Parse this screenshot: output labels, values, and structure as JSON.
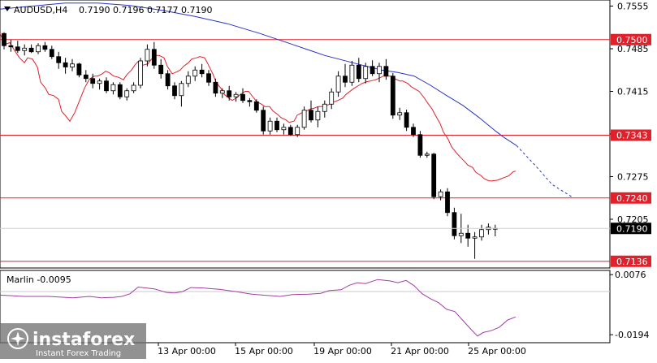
{
  "header": {
    "menu_icon": "triangle-down-icon",
    "symbol": "AUDUSD,H4",
    "ohlc": "0.7190 0.7196 0.7177 0.7190"
  },
  "indicator": {
    "label": "Marlin -0.0095"
  },
  "watermark": {
    "brand": "instaforex",
    "tagline": "Instant Forex Trading"
  },
  "colors": {
    "bull_candle": "#ffffff",
    "bear_candle": "#000000",
    "ma_fast": "#e0202a",
    "ma_slow": "#2832c8",
    "level_line": "#e0202a",
    "oscillator": "#a040a0",
    "price_badge": "#000000",
    "level_badge": "#e0202a"
  },
  "chart_data": {
    "type": "candlestick",
    "title": "AUDUSD,H4",
    "ylim": [
      0.7125,
      0.7565
    ],
    "y_ticks": [
      "0.7555",
      "0.7485",
      "0.7415",
      "0.7345",
      "0.7275",
      "0.7205",
      "0.7136"
    ],
    "x_ticks": [
      "13 Apr 00:00",
      "15 Apr 00:00",
      "19 Apr 00:00",
      "21 Apr 00:00",
      "25 Apr 00:00"
    ],
    "current_price": "0.7190",
    "levels": [
      {
        "label": "0.7500",
        "value": 0.75
      },
      {
        "label": "0.7343",
        "value": 0.7343
      },
      {
        "label": "0.7240",
        "value": 0.724
      },
      {
        "label": "0.7136",
        "value": 0.7136
      }
    ],
    "candles": [
      [
        0.751,
        0.7512,
        0.7484,
        0.749
      ],
      [
        0.749,
        0.75,
        0.748,
        0.7488
      ],
      [
        0.7488,
        0.7498,
        0.7478,
        0.7482
      ],
      [
        0.7482,
        0.7492,
        0.7474,
        0.7486
      ],
      [
        0.7486,
        0.7492,
        0.7478,
        0.748
      ],
      [
        0.748,
        0.7494,
        0.7476,
        0.749
      ],
      [
        0.749,
        0.7496,
        0.748,
        0.7484
      ],
      [
        0.7484,
        0.749,
        0.7468,
        0.7472
      ],
      [
        0.7472,
        0.748,
        0.7452,
        0.7462
      ],
      [
        0.7462,
        0.747,
        0.7444,
        0.7455
      ],
      [
        0.7455,
        0.7468,
        0.7448,
        0.746
      ],
      [
        0.746,
        0.7462,
        0.7438,
        0.7442
      ],
      [
        0.7442,
        0.745,
        0.743,
        0.7436
      ],
      [
        0.7436,
        0.7444,
        0.742,
        0.7428
      ],
      [
        0.7428,
        0.7436,
        0.7418,
        0.7432
      ],
      [
        0.7432,
        0.7438,
        0.7412,
        0.7416
      ],
      [
        0.7416,
        0.743,
        0.741,
        0.7426
      ],
      [
        0.7426,
        0.743,
        0.7402,
        0.7406
      ],
      [
        0.7406,
        0.742,
        0.74,
        0.7416
      ],
      [
        0.7416,
        0.743,
        0.7412,
        0.7425
      ],
      [
        0.7425,
        0.747,
        0.742,
        0.7465
      ],
      [
        0.7465,
        0.7492,
        0.7456,
        0.7484
      ],
      [
        0.7484,
        0.7496,
        0.7452,
        0.7458
      ],
      [
        0.7458,
        0.7468,
        0.7436,
        0.7444
      ],
      [
        0.7444,
        0.745,
        0.7418,
        0.7424
      ],
      [
        0.7424,
        0.743,
        0.7402,
        0.7408
      ],
      [
        0.7408,
        0.7432,
        0.739,
        0.7428
      ],
      [
        0.7428,
        0.7448,
        0.7422,
        0.744
      ],
      [
        0.744,
        0.7456,
        0.7432,
        0.745
      ],
      [
        0.745,
        0.746,
        0.7438,
        0.7444
      ],
      [
        0.7444,
        0.745,
        0.7424,
        0.743
      ],
      [
        0.743,
        0.7436,
        0.7406,
        0.7412
      ],
      [
        0.7412,
        0.742,
        0.7404,
        0.7416
      ],
      [
        0.7416,
        0.7424,
        0.74,
        0.7406
      ],
      [
        0.7406,
        0.7414,
        0.7398,
        0.741
      ],
      [
        0.741,
        0.742,
        0.7396,
        0.74
      ],
      [
        0.74,
        0.7404,
        0.739,
        0.7398
      ],
      [
        0.7398,
        0.7402,
        0.738,
        0.7384
      ],
      [
        0.7384,
        0.739,
        0.7344,
        0.735
      ],
      [
        0.735,
        0.7372,
        0.7344,
        0.7366
      ],
      [
        0.7366,
        0.7372,
        0.7348,
        0.7352
      ],
      [
        0.7352,
        0.7362,
        0.7344,
        0.7356
      ],
      [
        0.7356,
        0.736,
        0.7342,
        0.7344
      ],
      [
        0.7344,
        0.736,
        0.734,
        0.7356
      ],
      [
        0.7356,
        0.739,
        0.7352,
        0.7384
      ],
      [
        0.7384,
        0.74,
        0.7364,
        0.7368
      ],
      [
        0.7368,
        0.739,
        0.7356,
        0.7382
      ],
      [
        0.7382,
        0.74,
        0.7372,
        0.7394
      ],
      [
        0.7394,
        0.742,
        0.7386,
        0.7414
      ],
      [
        0.7414,
        0.7448,
        0.7406,
        0.744
      ],
      [
        0.744,
        0.746,
        0.7422,
        0.743
      ],
      [
        0.743,
        0.7465,
        0.7424,
        0.7458
      ],
      [
        0.7458,
        0.747,
        0.743,
        0.7436
      ],
      [
        0.7436,
        0.7462,
        0.7428,
        0.7456
      ],
      [
        0.7456,
        0.7466,
        0.744,
        0.7444
      ],
      [
        0.7444,
        0.7462,
        0.743,
        0.7456
      ],
      [
        0.7456,
        0.7468,
        0.7434,
        0.744
      ],
      [
        0.744,
        0.7445,
        0.737,
        0.7376
      ],
      [
        0.7376,
        0.7388,
        0.7368,
        0.738
      ],
      [
        0.738,
        0.7385,
        0.735,
        0.7356
      ],
      [
        0.7356,
        0.7362,
        0.734,
        0.7344
      ],
      [
        0.7344,
        0.735,
        0.7306,
        0.731
      ],
      [
        0.731,
        0.7316,
        0.7306,
        0.7312
      ],
      [
        0.7312,
        0.7314,
        0.7238,
        0.7242
      ],
      [
        0.7242,
        0.7254,
        0.7236,
        0.725
      ],
      [
        0.725,
        0.7256,
        0.721,
        0.7216
      ],
      [
        0.7216,
        0.7224,
        0.7172,
        0.7178
      ],
      [
        0.7178,
        0.7214,
        0.7166,
        0.7182
      ],
      [
        0.7182,
        0.7196,
        0.716,
        0.7174
      ],
      [
        0.7174,
        0.7184,
        0.714,
        0.7176
      ],
      [
        0.7176,
        0.7196,
        0.717,
        0.7188
      ],
      [
        0.7188,
        0.7198,
        0.718,
        0.7192
      ],
      [
        0.719,
        0.7196,
        0.7177,
        0.719
      ]
    ],
    "ma_fast": [
      [
        0,
        0.751
      ],
      [
        6,
        0.7492
      ],
      [
        12,
        0.7495
      ],
      [
        18,
        0.7482
      ],
      [
        24,
        0.747
      ],
      [
        30,
        0.7462
      ],
      [
        34,
        0.747
      ],
      [
        40,
        0.7468
      ],
      [
        46,
        0.7455
      ],
      [
        50,
        0.743
      ],
      [
        56,
        0.742
      ],
      [
        60,
        0.741
      ],
      [
        66,
        0.7408
      ],
      [
        72,
        0.7402
      ],
      [
        76,
        0.7382
      ],
      [
        80,
        0.7376
      ],
      [
        86,
        0.7366
      ],
      [
        92,
        0.738
      ],
      [
        98,
        0.74
      ],
      [
        104,
        0.742
      ],
      [
        110,
        0.7435
      ],
      [
        116,
        0.744
      ],
      [
        120,
        0.744
      ],
      [
        126,
        0.7444
      ],
      [
        130,
        0.7448
      ],
      [
        134,
        0.7446
      ],
      [
        140,
        0.744
      ],
      [
        146,
        0.7438
      ],
      [
        152,
        0.7434
      ],
      [
        156,
        0.7442
      ],
      [
        162,
        0.745
      ],
      [
        166,
        0.7458
      ],
      [
        170,
        0.7464
      ],
      [
        176,
        0.7458
      ],
      [
        182,
        0.746
      ],
      [
        186,
        0.7467
      ],
      [
        192,
        0.7474
      ],
      [
        196,
        0.7474
      ],
      [
        202,
        0.747
      ],
      [
        206,
        0.7456
      ],
      [
        212,
        0.7444
      ],
      [
        216,
        0.7446
      ],
      [
        222,
        0.745
      ],
      [
        226,
        0.7456
      ],
      [
        232,
        0.7462
      ],
      [
        236,
        0.7468
      ],
      [
        242,
        0.747
      ],
      [
        246,
        0.7472
      ],
      [
        252,
        0.747
      ],
      [
        256,
        0.746
      ],
      [
        262,
        0.7444
      ],
      [
        266,
        0.743
      ],
      [
        272,
        0.742
      ],
      [
        276,
        0.741
      ],
      [
        282,
        0.7404
      ],
      [
        286,
        0.74
      ],
      [
        292,
        0.7405
      ],
      [
        296,
        0.741
      ],
      [
        302,
        0.7415
      ],
      [
        306,
        0.7415
      ],
      [
        312,
        0.7405
      ],
      [
        316,
        0.7398
      ],
      [
        322,
        0.7394
      ],
      [
        326,
        0.739
      ],
      [
        332,
        0.739
      ],
      [
        336,
        0.7383
      ],
      [
        342,
        0.7377
      ],
      [
        346,
        0.7372
      ],
      [
        352,
        0.7368
      ],
      [
        356,
        0.7364
      ],
      [
        362,
        0.7366
      ],
      [
        366,
        0.7376
      ],
      [
        372,
        0.738
      ],
      [
        376,
        0.7382
      ],
      [
        382,
        0.7386
      ],
      [
        386,
        0.7387
      ],
      [
        392,
        0.739
      ],
      [
        396,
        0.739
      ],
      [
        402,
        0.7392
      ],
      [
        406,
        0.7394
      ],
      [
        412,
        0.7398
      ],
      [
        416,
        0.74
      ],
      [
        422,
        0.7404
      ],
      [
        426,
        0.741
      ],
      [
        432,
        0.7416
      ],
      [
        436,
        0.742
      ],
      [
        442,
        0.7425
      ],
      [
        446,
        0.7428
      ],
      [
        452,
        0.7431
      ],
      [
        456,
        0.7432
      ],
      [
        462,
        0.7434
      ],
      [
        466,
        0.7436
      ],
      [
        472,
        0.744
      ],
      [
        476,
        0.744
      ],
      [
        482,
        0.744
      ],
      [
        486,
        0.7436
      ],
      [
        492,
        0.7432
      ],
      [
        496,
        0.7432
      ],
      [
        502,
        0.7428
      ],
      [
        506,
        0.7423
      ],
      [
        512,
        0.7418
      ],
      [
        516,
        0.7415
      ],
      [
        522,
        0.7405
      ],
      [
        526,
        0.7397
      ],
      [
        532,
        0.7386
      ],
      [
        536,
        0.7376
      ],
      [
        542,
        0.7362
      ],
      [
        546,
        0.7348
      ],
      [
        552,
        0.7336
      ],
      [
        556,
        0.7324
      ],
      [
        562,
        0.7314
      ],
      [
        566,
        0.7308
      ],
      [
        572,
        0.73
      ],
      [
        576,
        0.7294
      ],
      [
        582,
        0.729
      ],
      [
        586,
        0.7282
      ],
      [
        592,
        0.7277
      ],
      [
        596,
        0.7272
      ],
      [
        602,
        0.7268
      ],
      [
        606,
        0.7268
      ],
      [
        612,
        0.7269
      ],
      [
        616,
        0.7271
      ],
      [
        622,
        0.7274
      ],
      [
        626,
        0.7276
      ],
      [
        632,
        0.7283
      ],
      [
        635,
        0.7284
      ]
    ],
    "ma_slow": [
      [
        0,
        0.755
      ],
      [
        40,
        0.7555
      ],
      [
        80,
        0.756
      ],
      [
        120,
        0.756
      ],
      [
        160,
        0.7556
      ],
      [
        200,
        0.7548
      ],
      [
        240,
        0.7538
      ],
      [
        280,
        0.7526
      ],
      [
        320,
        0.751
      ],
      [
        360,
        0.7492
      ],
      [
        400,
        0.7474
      ],
      [
        440,
        0.746
      ],
      [
        470,
        0.745
      ],
      [
        490,
        0.7446
      ],
      [
        510,
        0.744
      ],
      [
        530,
        0.7425
      ],
      [
        550,
        0.7408
      ],
      [
        570,
        0.7392
      ],
      [
        590,
        0.7372
      ],
      [
        610,
        0.735
      ],
      [
        620,
        0.734
      ],
      [
        636,
        0.7326
      ]
    ],
    "ma_slow_projection": [
      [
        636,
        0.7326
      ],
      [
        660,
        0.7292
      ],
      [
        680,
        0.7262
      ],
      [
        704,
        0.7242
      ]
    ],
    "oscillator": {
      "label": "Marlin",
      "value": -0.0095,
      "ylim": [
        -0.023,
        0.0095
      ],
      "y_ticks": [
        "0.0076",
        "-0.0194"
      ],
      "zero_line": 0,
      "points": [
        [
          0,
          -0.0016
        ],
        [
          30,
          -0.0022
        ],
        [
          60,
          -0.0022
        ],
        [
          90,
          -0.0028
        ],
        [
          110,
          -0.0022
        ],
        [
          125,
          -0.0028
        ],
        [
          140,
          -0.0026
        ],
        [
          150,
          -0.0022
        ],
        [
          160,
          -0.001
        ],
        [
          170,
          0.002
        ],
        [
          190,
          0.0012
        ],
        [
          205,
          -0.0004
        ],
        [
          215,
          -0.0006
        ],
        [
          225,
          0.0
        ],
        [
          235,
          0.0018
        ],
        [
          250,
          0.0016
        ],
        [
          270,
          0.001
        ],
        [
          290,
          0.0
        ],
        [
          310,
          -0.0012
        ],
        [
          330,
          -0.0018
        ],
        [
          345,
          -0.0022
        ],
        [
          360,
          -0.0014
        ],
        [
          380,
          -0.0012
        ],
        [
          395,
          -0.0008
        ],
        [
          405,
          0.0004
        ],
        [
          420,
          0.0008
        ],
        [
          430,
          0.0028
        ],
        [
          440,
          0.004
        ],
        [
          450,
          0.0036
        ],
        [
          465,
          0.0054
        ],
        [
          480,
          0.0048
        ],
        [
          490,
          0.004
        ],
        [
          500,
          0.005
        ],
        [
          510,
          0.0026
        ],
        [
          520,
          -0.001
        ],
        [
          530,
          -0.0032
        ],
        [
          540,
          -0.005
        ],
        [
          550,
          -0.008
        ],
        [
          560,
          -0.009
        ],
        [
          570,
          -0.013
        ],
        [
          580,
          -0.017
        ],
        [
          588,
          -0.02
        ],
        [
          595,
          -0.0184
        ],
        [
          605,
          -0.0176
        ],
        [
          615,
          -0.016
        ],
        [
          625,
          -0.0128
        ],
        [
          635,
          -0.0114
        ]
      ]
    }
  }
}
